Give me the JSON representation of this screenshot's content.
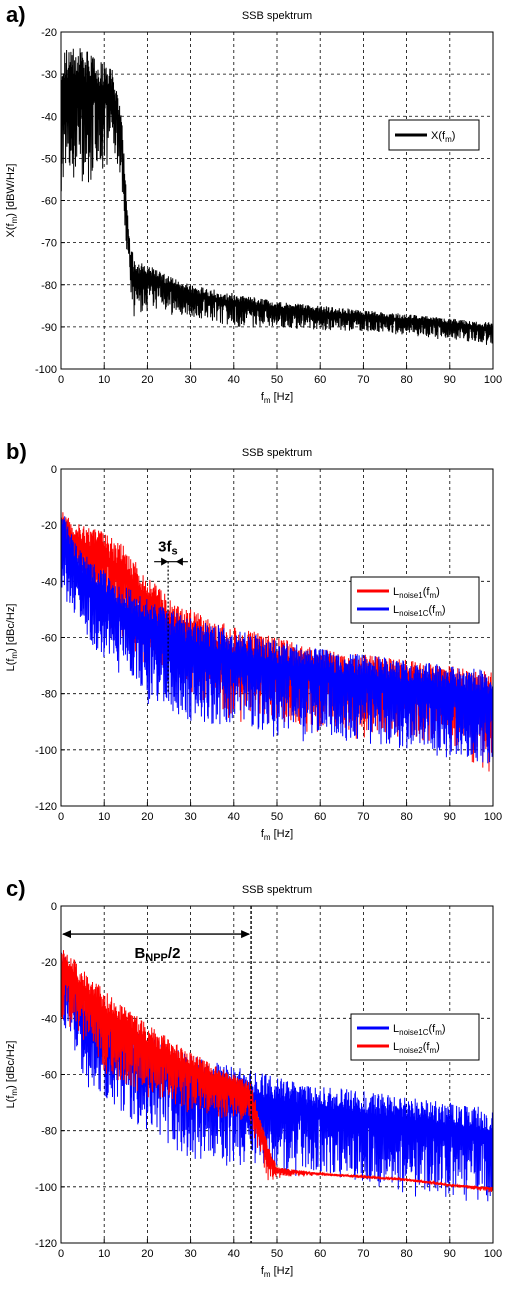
{
  "colors": {
    "black": "#000000",
    "red": "#ff0000",
    "blue": "#0000ff",
    "grid": "#000000"
  },
  "chart_data": [
    {
      "panel_label": "a)",
      "type": "line",
      "title": "SSB spektrum",
      "xlabel": {
        "main": "f",
        "sub": "m",
        "rest": " [Hz]"
      },
      "ylabel": {
        "main": "X(f",
        "sub": "m",
        "rest": ") [dBW/Hz]"
      },
      "xlim": [
        0,
        100
      ],
      "ylim": [
        -100,
        -20
      ],
      "xticks": [
        "0",
        "10",
        "20",
        "30",
        "40",
        "50",
        "60",
        "70",
        "80",
        "90",
        "100"
      ],
      "yticks": [
        "-100",
        "-90",
        "-80",
        "-70",
        "-60",
        "-50",
        "-40",
        "-30",
        "-20"
      ],
      "grid": true,
      "legend_position": "right",
      "series": [
        {
          "name": {
            "main": "X(f",
            "sub": "m",
            "rest": ")"
          },
          "color": "#000000",
          "upper": [
            [
              0,
              -24
            ],
            [
              2,
              -23
            ],
            [
              5,
              -24
            ],
            [
              8,
              -25
            ],
            [
              10,
              -27
            ],
            [
              12,
              -29
            ],
            [
              13,
              -34
            ],
            [
              14,
              -40
            ],
            [
              15,
              -55
            ],
            [
              16,
              -70
            ],
            [
              17,
              -74
            ],
            [
              20,
              -75
            ],
            [
              25,
              -78
            ],
            [
              30,
              -80
            ],
            [
              40,
              -82
            ],
            [
              50,
              -84
            ],
            [
              60,
              -85
            ],
            [
              70,
              -86
            ],
            [
              80,
              -87
            ],
            [
              90,
              -88
            ],
            [
              100,
              -89
            ]
          ],
          "lower": [
            [
              0,
              -58
            ],
            [
              2,
              -55
            ],
            [
              5,
              -58
            ],
            [
              8,
              -55
            ],
            [
              10,
              -52
            ],
            [
              12,
              -48
            ],
            [
              14,
              -55
            ],
            [
              15,
              -70
            ],
            [
              16,
              -85
            ],
            [
              17,
              -88
            ],
            [
              20,
              -86
            ],
            [
              30,
              -88
            ],
            [
              40,
              -90
            ],
            [
              50,
              -90
            ],
            [
              60,
              -91
            ],
            [
              70,
              -91
            ],
            [
              80,
              -92
            ],
            [
              90,
              -93
            ],
            [
              100,
              -94
            ]
          ]
        }
      ],
      "annotations": []
    },
    {
      "panel_label": "b)",
      "type": "line",
      "title": "SSB spektrum",
      "xlabel": {
        "main": "f",
        "sub": "m",
        "rest": " [Hz]"
      },
      "ylabel": {
        "main": "L(f",
        "sub": "m",
        "rest": ") [dBc/Hz]"
      },
      "xlim": [
        0,
        100
      ],
      "ylim": [
        -120,
        0
      ],
      "xticks": [
        "0",
        "10",
        "20",
        "30",
        "40",
        "50",
        "60",
        "70",
        "80",
        "90",
        "100"
      ],
      "yticks": [
        "-120",
        "-100",
        "-80",
        "-60",
        "-40",
        "-20",
        "0"
      ],
      "grid": true,
      "legend_position": "right",
      "series": [
        {
          "name": {
            "main": "L",
            "sub": "noise1",
            "rest": "(f",
            "sub2": "m",
            "rest2": ")"
          },
          "color": "#ff0000",
          "upper": [
            [
              0,
              -13
            ],
            [
              2,
              -18
            ],
            [
              5,
              -20
            ],
            [
              10,
              -22
            ],
            [
              15,
              -28
            ],
            [
              20,
              -38
            ],
            [
              25,
              -46
            ],
            [
              30,
              -50
            ],
            [
              40,
              -56
            ],
            [
              50,
              -60
            ],
            [
              60,
              -64
            ],
            [
              70,
              -66
            ],
            [
              80,
              -68
            ],
            [
              90,
              -70
            ],
            [
              100,
              -72
            ]
          ],
          "lower": [
            [
              0,
              -30
            ],
            [
              5,
              -45
            ],
            [
              10,
              -55
            ],
            [
              20,
              -70
            ],
            [
              30,
              -80
            ],
            [
              40,
              -88
            ],
            [
              50,
              -90
            ],
            [
              60,
              -92
            ],
            [
              70,
              -94
            ],
            [
              80,
              -96
            ],
            [
              90,
              -98
            ],
            [
              100,
              -110
            ]
          ]
        },
        {
          "name": {
            "main": "L",
            "sub": "noise1C",
            "rest": "(f",
            "sub2": "m",
            "rest2": ")"
          },
          "color": "#0000ff",
          "upper": [
            [
              0,
              -12
            ],
            [
              2,
              -22
            ],
            [
              5,
              -30
            ],
            [
              10,
              -36
            ],
            [
              15,
              -42
            ],
            [
              20,
              -46
            ],
            [
              25,
              -50
            ],
            [
              30,
              -53
            ],
            [
              40,
              -57
            ],
            [
              50,
              -61
            ],
            [
              60,
              -64
            ],
            [
              70,
              -66
            ],
            [
              80,
              -68
            ],
            [
              90,
              -70
            ],
            [
              100,
              -72
            ]
          ],
          "lower": [
            [
              0,
              -40
            ],
            [
              5,
              -60
            ],
            [
              10,
              -68
            ],
            [
              20,
              -82
            ],
            [
              30,
              -90
            ],
            [
              40,
              -92
            ],
            [
              50,
              -94
            ],
            [
              60,
              -96
            ],
            [
              70,
              -98
            ],
            [
              80,
              -100
            ],
            [
              90,
              -103
            ],
            [
              100,
              -105
            ]
          ]
        }
      ],
      "annotations": [
        {
          "label": "3f",
          "sub": "s"
        }
      ]
    },
    {
      "panel_label": "c)",
      "type": "line",
      "title": "SSB spektrum",
      "xlabel": {
        "main": "f",
        "sub": "m",
        "rest": " [Hz]"
      },
      "ylabel": {
        "main": "L(f",
        "sub": "m",
        "rest": ") [dBc/Hz]"
      },
      "xlim": [
        0,
        100
      ],
      "ylim": [
        -120,
        0
      ],
      "xticks": [
        "0",
        "10",
        "20",
        "30",
        "40",
        "50",
        "60",
        "70",
        "80",
        "90",
        "100"
      ],
      "yticks": [
        "-120",
        "-100",
        "-80",
        "-60",
        "-40",
        "-20",
        "0"
      ],
      "grid": true,
      "legend_position": "right",
      "series": [
        {
          "name": {
            "main": "L",
            "sub": "noise1C",
            "rest": "(f",
            "sub2": "m",
            "rest2": ")"
          },
          "color": "#0000ff",
          "upper": [
            [
              0,
              -12
            ],
            [
              2,
              -22
            ],
            [
              5,
              -30
            ],
            [
              10,
              -36
            ],
            [
              15,
              -42
            ],
            [
              20,
              -46
            ],
            [
              25,
              -50
            ],
            [
              30,
              -53
            ],
            [
              40,
              -57
            ],
            [
              50,
              -61
            ],
            [
              60,
              -64
            ],
            [
              70,
              -66
            ],
            [
              80,
              -68
            ],
            [
              90,
              -70
            ],
            [
              100,
              -72
            ]
          ],
          "lower": [
            [
              0,
              -40
            ],
            [
              5,
              -60
            ],
            [
              10,
              -68
            ],
            [
              20,
              -82
            ],
            [
              30,
              -90
            ],
            [
              40,
              -92
            ],
            [
              50,
              -94
            ],
            [
              60,
              -96
            ],
            [
              70,
              -98
            ],
            [
              80,
              -100
            ],
            [
              90,
              -103
            ],
            [
              100,
              -105
            ]
          ]
        },
        {
          "name": {
            "main": "L",
            "sub": "noise2",
            "rest": "(f",
            "sub2": "m",
            "rest2": ")"
          },
          "color": "#ff0000",
          "upper": [
            [
              0,
              -14
            ],
            [
              5,
              -22
            ],
            [
              10,
              -30
            ],
            [
              20,
              -42
            ],
            [
              30,
              -52
            ],
            [
              40,
              -60
            ],
            [
              44,
              -63
            ],
            [
              46,
              -75
            ],
            [
              48,
              -85
            ],
            [
              50,
              -93
            ],
            [
              60,
              -95
            ],
            [
              70,
              -96
            ],
            [
              80,
              -97
            ],
            [
              90,
              -99
            ],
            [
              100,
              -100
            ]
          ],
          "lower": [
            [
              0,
              -40
            ],
            [
              5,
              -48
            ],
            [
              10,
              -60
            ],
            [
              20,
              -68
            ],
            [
              30,
              -74
            ],
            [
              40,
              -76
            ],
            [
              44,
              -78
            ],
            [
              46,
              -90
            ],
            [
              48,
              -98
            ],
            [
              50,
              -97
            ],
            [
              60,
              -96
            ],
            [
              70,
              -97
            ],
            [
              80,
              -98
            ],
            [
              90,
              -100
            ],
            [
              100,
              -102
            ]
          ]
        }
      ],
      "annotations": [
        {
          "label": "B",
          "sub": "NPP",
          "rest": "/2"
        }
      ]
    }
  ]
}
